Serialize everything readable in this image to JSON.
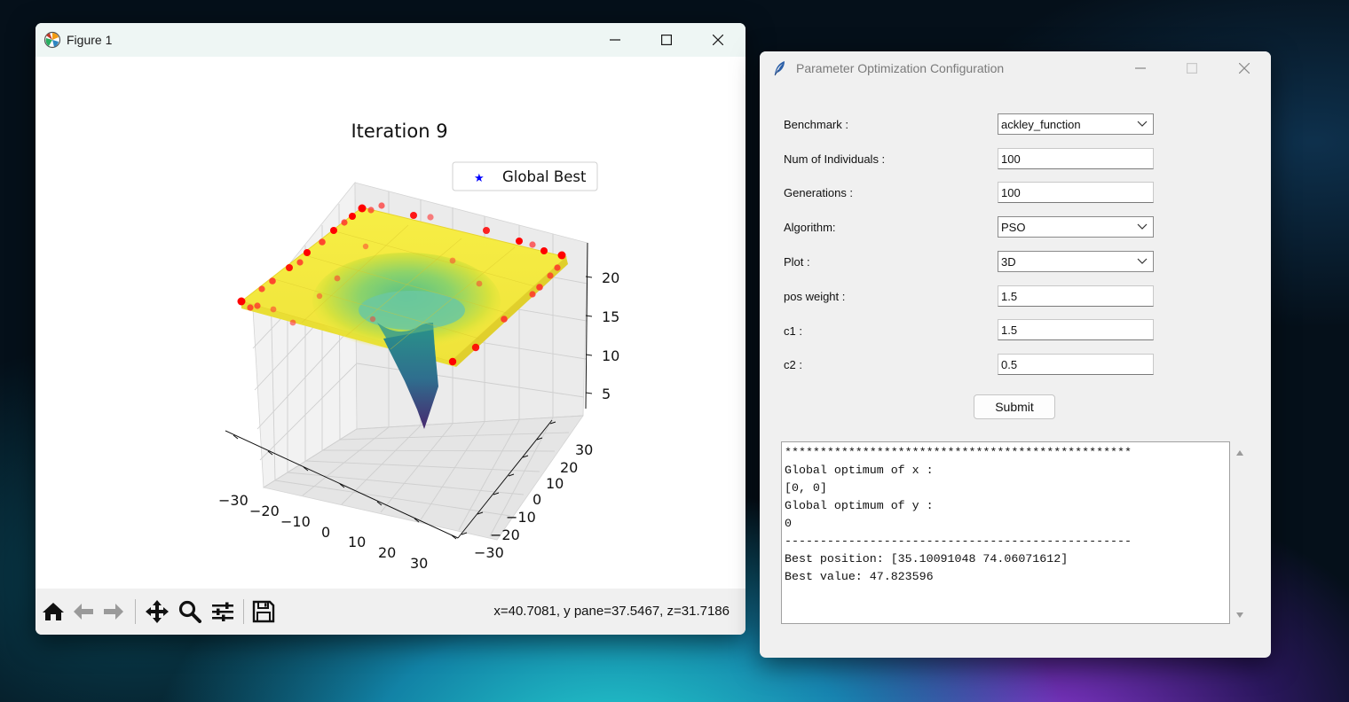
{
  "figure_window": {
    "title": "Figure 1",
    "plot_title": "Iteration 9",
    "legend_label": "Global Best",
    "z_ticks": [
      "20",
      "15",
      "10",
      "5"
    ],
    "x_ticks": [
      "−30",
      "−20",
      "−10",
      "0",
      "10",
      "20",
      "30"
    ],
    "y_ticks": [
      "30",
      "20",
      "10",
      "0",
      "−10",
      "−20",
      "−30"
    ],
    "coords_readout": "x=40.7081, y pane=37.5467, z=31.7186",
    "toolbar": [
      "home-icon",
      "back-arrow-icon",
      "forward-arrow-icon",
      "pan-icon",
      "zoom-icon",
      "configure-subplots-icon",
      "save-icon"
    ],
    "colors": {
      "surface_top": "#f2e93a",
      "surface_bottom": "#4b2d7a",
      "particles": "#ff0000",
      "global_best": "#0000ff"
    }
  },
  "config_window": {
    "title": "Parameter Optimization Configuration",
    "fields": [
      {
        "label": "Benchmark :",
        "value": "ackley_function",
        "type": "select"
      },
      {
        "label": "Num of Individuals :",
        "value": "100",
        "type": "entry"
      },
      {
        "label": "Generations :",
        "value": "100",
        "type": "entry"
      },
      {
        "label": "Algorithm:",
        "value": "PSO",
        "type": "select"
      },
      {
        "label": "Plot :",
        "value": "3D",
        "type": "select"
      },
      {
        "label": "pos weight :",
        "value": "1.5",
        "type": "entry"
      },
      {
        "label": "c1 :",
        "value": "1.5",
        "type": "entry"
      },
      {
        "label": "c2 :",
        "value": "0.5",
        "type": "entry"
      }
    ],
    "submit_label": "Submit",
    "output_lines": [
      "*************************************************",
      "Global optimum of x :",
      "[0, 0]",
      "Global optimum of y :",
      "0",
      "-------------------------------------------------",
      "Best position: [35.10091048 74.06071612]",
      "Best value: 47.823596"
    ]
  }
}
